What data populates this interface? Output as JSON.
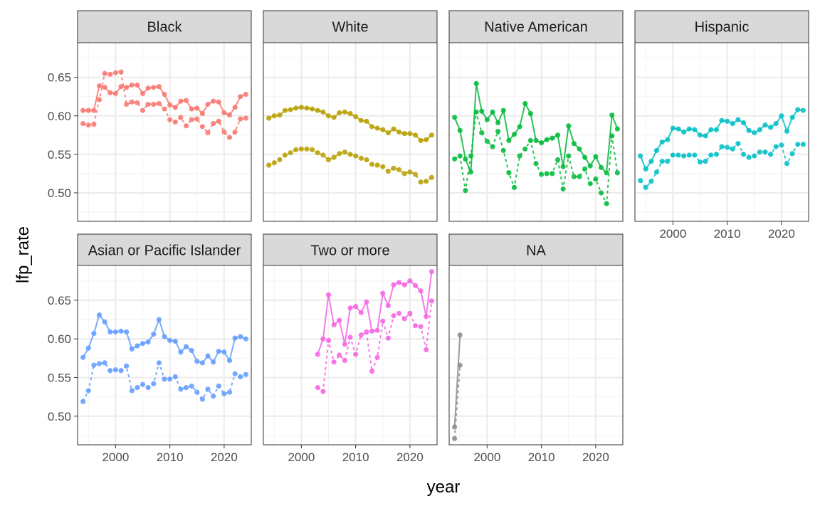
{
  "chart_data": {
    "type": "line",
    "layout": "facet_wrap",
    "xlabel": "year",
    "ylabel": "lfp_rate",
    "xlim": [
      1993,
      2025
    ],
    "ylim": [
      0.463,
      0.695
    ],
    "x_ticks": [
      2000,
      2010,
      2020
    ],
    "y_ticks": [
      0.5,
      0.55,
      0.6,
      0.65
    ],
    "grid": true,
    "legend": "none",
    "line_styles": [
      "solid",
      "dashed"
    ],
    "panels": [
      {
        "title": "Black",
        "color": "#F8766D",
        "x": [
          1994,
          1995,
          1996,
          1997,
          1998,
          1999,
          2000,
          2001,
          2002,
          2003,
          2004,
          2005,
          2006,
          2007,
          2008,
          2009,
          2010,
          2011,
          2012,
          2013,
          2014,
          2015,
          2016,
          2017,
          2018,
          2019,
          2020,
          2021,
          2022,
          2023,
          2024
        ],
        "series": [
          {
            "line": "solid",
            "values": [
              0.607,
              0.607,
              0.607,
              0.639,
              0.637,
              0.63,
              0.629,
              0.638,
              0.637,
              0.64,
              0.64,
              0.629,
              0.636,
              0.637,
              0.638,
              0.628,
              0.614,
              0.611,
              0.619,
              0.62,
              0.609,
              0.61,
              0.603,
              0.615,
              0.619,
              0.618,
              0.604,
              0.601,
              0.611,
              0.625,
              0.628
            ]
          },
          {
            "line": "dashed",
            "values": [
              0.59,
              0.588,
              0.589,
              0.621,
              0.655,
              0.654,
              0.656,
              0.657,
              0.615,
              0.618,
              0.617,
              0.607,
              0.615,
              0.615,
              0.616,
              0.609,
              0.595,
              0.592,
              0.598,
              0.587,
              0.595,
              0.596,
              0.586,
              0.578,
              0.59,
              0.593,
              0.579,
              0.572,
              0.579,
              0.596,
              0.597
            ]
          }
        ]
      },
      {
        "title": "White",
        "color": "#B79F00",
        "x": [
          1994,
          1995,
          1996,
          1997,
          1998,
          1999,
          2000,
          2001,
          2002,
          2003,
          2004,
          2005,
          2006,
          2007,
          2008,
          2009,
          2010,
          2011,
          2012,
          2013,
          2014,
          2015,
          2016,
          2017,
          2018,
          2019,
          2020,
          2021,
          2022,
          2023,
          2024
        ],
        "series": [
          {
            "line": "solid",
            "values": [
              0.597,
              0.6,
              0.601,
              0.607,
              0.608,
              0.61,
              0.611,
              0.61,
              0.609,
              0.607,
              0.605,
              0.6,
              0.598,
              0.604,
              0.605,
              0.603,
              0.599,
              0.594,
              0.593,
              0.586,
              0.584,
              0.582,
              0.578,
              0.583,
              0.579,
              0.577,
              0.577,
              0.575,
              0.568,
              0.569,
              0.575
            ]
          },
          {
            "line": "dashed",
            "values": [
              0.536,
              0.539,
              0.543,
              0.549,
              0.552,
              0.556,
              0.557,
              0.557,
              0.556,
              0.552,
              0.549,
              0.543,
              0.546,
              0.551,
              0.553,
              0.55,
              0.548,
              0.545,
              0.543,
              0.537,
              0.536,
              0.534,
              0.528,
              0.532,
              0.53,
              0.525,
              0.527,
              0.524,
              0.514,
              0.515,
              0.52
            ]
          }
        ]
      },
      {
        "title": "Native American",
        "color": "#00BA38",
        "x": [
          1994,
          1995,
          1996,
          1997,
          1998,
          1999,
          2000,
          2001,
          2002,
          2003,
          2004,
          2005,
          2006,
          2007,
          2008,
          2009,
          2010,
          2011,
          2012,
          2013,
          2014,
          2015,
          2016,
          2017,
          2018,
          2019,
          2020,
          2021,
          2022,
          2023,
          2024
        ],
        "series": [
          {
            "line": "solid",
            "values": [
              0.598,
              0.581,
              0.544,
              0.527,
              0.642,
              0.606,
              0.595,
              0.605,
              0.591,
              0.607,
              0.568,
              0.576,
              0.586,
              0.616,
              0.603,
              0.568,
              0.565,
              0.569,
              0.571,
              0.575,
              0.534,
              0.587,
              0.564,
              0.557,
              0.546,
              0.535,
              0.547,
              0.533,
              0.526,
              0.601,
              0.583
            ]
          },
          {
            "line": "dashed",
            "values": [
              0.544,
              0.548,
              0.503,
              0.548,
              0.605,
              0.578,
              0.567,
              0.56,
              0.58,
              0.555,
              0.526,
              0.507,
              0.548,
              0.557,
              0.568,
              0.538,
              0.524,
              0.525,
              0.525,
              0.543,
              0.505,
              0.548,
              0.521,
              0.521,
              0.531,
              0.512,
              0.518,
              0.5,
              0.486,
              0.574,
              0.526
            ]
          }
        ]
      },
      {
        "title": "Hispanic",
        "color": "#00BFC4",
        "x": [
          1994,
          1995,
          1996,
          1997,
          1998,
          1999,
          2000,
          2001,
          2002,
          2003,
          2004,
          2005,
          2006,
          2007,
          2008,
          2009,
          2010,
          2011,
          2012,
          2013,
          2014,
          2015,
          2016,
          2017,
          2018,
          2019,
          2020,
          2021,
          2022,
          2023,
          2024
        ],
        "series": [
          {
            "line": "solid",
            "values": [
              0.548,
              0.531,
              0.541,
              0.555,
              0.566,
              0.569,
              0.584,
              0.583,
              0.579,
              0.583,
              0.582,
              0.575,
              0.574,
              0.582,
              0.582,
              0.594,
              0.593,
              0.59,
              0.595,
              0.591,
              0.581,
              0.578,
              0.582,
              0.588,
              0.585,
              0.59,
              0.6,
              0.58,
              0.598,
              0.608,
              0.607
            ]
          },
          {
            "line": "dashed",
            "values": [
              0.516,
              0.507,
              0.515,
              0.527,
              0.541,
              0.541,
              0.549,
              0.549,
              0.548,
              0.549,
              0.549,
              0.54,
              0.541,
              0.549,
              0.55,
              0.56,
              0.559,
              0.557,
              0.564,
              0.55,
              0.546,
              0.548,
              0.553,
              0.553,
              0.55,
              0.56,
              0.562,
              0.538,
              0.551,
              0.563,
              0.563
            ]
          }
        ]
      },
      {
        "title": "Asian or Pacific Islander",
        "color": "#619CFF",
        "x": [
          1994,
          1995,
          1996,
          1997,
          1998,
          1999,
          2000,
          2001,
          2002,
          2003,
          2004,
          2005,
          2006,
          2007,
          2008,
          2009,
          2010,
          2011,
          2012,
          2013,
          2014,
          2015,
          2016,
          2017,
          2018,
          2019,
          2020,
          2021,
          2022,
          2023,
          2024
        ],
        "series": [
          {
            "line": "solid",
            "values": [
              0.576,
              0.588,
              0.607,
              0.631,
              0.622,
              0.609,
              0.609,
              0.61,
              0.609,
              0.587,
              0.591,
              0.594,
              0.596,
              0.606,
              0.625,
              0.603,
              0.598,
              0.597,
              0.583,
              0.59,
              0.585,
              0.571,
              0.569,
              0.578,
              0.57,
              0.584,
              0.583,
              0.572,
              0.601,
              0.603,
              0.6
            ]
          },
          {
            "line": "dashed",
            "values": [
              0.519,
              0.533,
              0.566,
              0.568,
              0.569,
              0.559,
              0.56,
              0.559,
              0.565,
              0.533,
              0.537,
              0.541,
              0.537,
              0.542,
              0.569,
              0.548,
              0.548,
              0.551,
              0.535,
              0.537,
              0.539,
              0.531,
              0.522,
              0.535,
              0.526,
              0.539,
              0.529,
              0.531,
              0.555,
              0.551,
              0.554
            ]
          }
        ]
      },
      {
        "title": "Two or more",
        "color": "#F564E3",
        "x": [
          2003,
          2004,
          2005,
          2006,
          2007,
          2008,
          2009,
          2010,
          2011,
          2012,
          2013,
          2014,
          2015,
          2016,
          2017,
          2018,
          2019,
          2020,
          2021,
          2022,
          2023,
          2024
        ],
        "series": [
          {
            "line": "solid",
            "values": [
              0.58,
              0.6,
              0.657,
              0.618,
              0.624,
              0.593,
              0.64,
              0.642,
              0.634,
              0.648,
              0.61,
              0.611,
              0.659,
              0.643,
              0.67,
              0.673,
              0.67,
              0.675,
              0.669,
              0.662,
              0.629,
              0.687
            ]
          },
          {
            "line": "dashed",
            "values": [
              0.537,
              0.532,
              0.598,
              0.57,
              0.579,
              0.572,
              0.602,
              0.58,
              0.605,
              0.609,
              0.558,
              0.576,
              0.623,
              0.601,
              0.63,
              0.633,
              0.626,
              0.633,
              0.617,
              0.616,
              0.586,
              0.649
            ]
          }
        ]
      },
      {
        "title": "NA",
        "color": "#8C8C8C",
        "x": [
          1994,
          1995
        ],
        "series": [
          {
            "line": "solid",
            "values": [
              0.486,
              0.605
            ]
          },
          {
            "line": "dashed",
            "values": [
              0.471,
              0.566
            ]
          }
        ]
      }
    ]
  }
}
